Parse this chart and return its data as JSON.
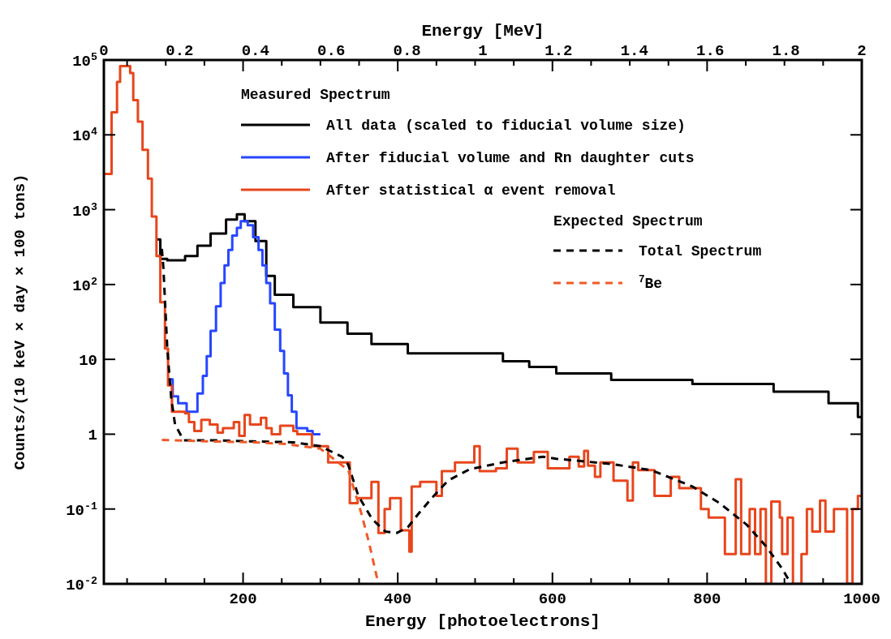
{
  "chart_data": {
    "type": "step",
    "xlabel": "Energy [photoelectrons]",
    "x2label": "Energy [MeV]",
    "ylabel": "Counts/(10 keV × day × 100 tons)",
    "legend_title": "Measured Spectrum",
    "annotations": [
      "Expected Spectrum"
    ],
    "log": "y",
    "legend": "top right",
    "grid": false,
    "xlim": [
      20,
      1000
    ],
    "xticks": [
      {
        "value": 50,
        "label": null
      },
      {
        "value": 100,
        "label": null
      },
      {
        "value": 150,
        "label": null
      },
      200,
      {
        "value": 250,
        "label": null
      },
      {
        "value": 300,
        "label": null
      },
      {
        "value": 350,
        "label": null
      },
      400,
      {
        "value": 450,
        "label": null
      },
      {
        "value": 500,
        "label": null
      },
      {
        "value": 550,
        "label": null
      },
      600,
      {
        "value": 650,
        "label": null
      },
      {
        "value": 700,
        "label": null
      },
      {
        "value": 750,
        "label": null
      },
      800,
      {
        "value": 850,
        "label": null
      },
      {
        "value": 900,
        "label": null
      },
      {
        "value": 950,
        "label": null
      },
      1000
    ],
    "x2lim": [
      0,
      2
    ],
    "x2ticks": [
      0,
      0.2,
      0.4,
      0.6,
      0.8,
      1,
      1.2,
      1.4,
      1.6,
      1.8,
      2
    ],
    "ylim": [
      0.01,
      100000
    ],
    "yticks": [
      {
        "value": 100000,
        "label": "10$^{5}$"
      },
      {
        "value": 10000,
        "label": "10$^{4}$"
      },
      {
        "value": 1000,
        "label": "10$^{3}$"
      },
      {
        "value": 100,
        "label": "10$^{2}$"
      },
      10,
      1,
      {
        "value": 0.1,
        "label": "10$^{-1}$"
      },
      {
        "value": 0.01,
        "label": "10$^{-2}$"
      }
    ],
    "series": [
      {
        "name": "All data (scaled to fiducial volume size)",
        "color": "#000000",
        "x": [
          88,
          93,
          102,
          125,
          141,
          158,
          178,
          192,
          202,
          216,
          230,
          241,
          265,
          300,
          335,
          366,
          413,
          465,
          536,
          570,
          605,
          676,
          781,
          886,
          957,
          995,
          1000
        ],
        "values": [
          400,
          220,
          210,
          240,
          330,
          480,
          740,
          870,
          700,
          380,
          130,
          73,
          50,
          31,
          22,
          16,
          12,
          12,
          9.4,
          7.9,
          6.5,
          5.3,
          4.7,
          3.7,
          2.6,
          1.7,
          1.7
        ]
      },
      {
        "name": "After fiducial volume and Rn daughter cuts",
        "color": "#2646ff",
        "x": [
          103,
          109,
          116,
          127,
          141,
          148,
          153,
          158,
          165,
          171,
          176,
          181,
          186,
          192,
          197,
          206,
          213,
          220,
          225,
          230,
          235,
          241,
          248,
          253,
          258,
          263,
          269,
          283,
          290,
          300
        ],
        "values": [
          5.4,
          3.2,
          2.6,
          2.0,
          3.5,
          6,
          11,
          24,
          51,
          105,
          180,
          290,
          450,
          570,
          700,
          620,
          430,
          290,
          180,
          105,
          56,
          25,
          13,
          6.5,
          3.3,
          2.0,
          1.2,
          1.1,
          1.0,
          1.0
        ]
      },
      {
        "name": "After statistical α event removal",
        "color": "#e8461c",
        "x": [
          20,
          30,
          37,
          41,
          54,
          58,
          64,
          70,
          77,
          82,
          88,
          93,
          99,
          103,
          108,
          125,
          130,
          137,
          146,
          157,
          167,
          174,
          188,
          195,
          202,
          209,
          223,
          230,
          237,
          248,
          265,
          270,
          289,
          310,
          338,
          348,
          366,
          375,
          383,
          390,
          404,
          415,
          418,
          429,
          450,
          457,
          474,
          499,
          506,
          527,
          541,
          555,
          576,
          594,
          622,
          634,
          641,
          646,
          655,
          662,
          679,
          697,
          704,
          711,
          732,
          753,
          764,
          792,
          802,
          823,
          837,
          844,
          855,
          862,
          869,
          876,
          883,
          894,
          897,
          904,
          911,
          922,
          929,
          936,
          946,
          953,
          964,
          981,
          988,
          995,
          1000
        ],
        "values": [
          3000,
          20000,
          51000,
          83000,
          67000,
          29000,
          15000,
          6300,
          2600,
          810,
          240,
          58,
          14,
          4.5,
          2.0,
          1.9,
          1.45,
          1.1,
          1.55,
          1.35,
          1.05,
          1.2,
          1.45,
          0.95,
          1.8,
          1.35,
          1.65,
          1.2,
          1.0,
          1.3,
          1.1,
          1.0,
          0.69,
          0.42,
          0.12,
          0.14,
          0.23,
          0.048,
          0.1,
          0.14,
          0.052,
          0.027,
          0.2,
          0.23,
          0.15,
          0.32,
          0.42,
          0.69,
          0.32,
          0.35,
          0.64,
          0.42,
          0.58,
          0.35,
          0.5,
          0.37,
          0.6,
          0.38,
          0.27,
          0.42,
          0.24,
          0.13,
          0.42,
          0.33,
          0.15,
          0.27,
          0.19,
          0.1,
          0.077,
          0.025,
          0.25,
          0.025,
          0.1,
          0.025,
          0.1,
          0.01,
          0.126,
          0.077,
          0.025,
          0.077,
          0.01,
          0.025,
          0.1,
          0.05,
          0.13,
          0.05,
          0.1,
          0.01,
          0.1,
          0.15,
          0.15
        ]
      },
      {
        "name": "Total Spectrum",
        "type": "line",
        "line_style": "dashed",
        "color": "#000000",
        "x": [
          95,
          97,
          102,
          107,
          112,
          123,
          160,
          213,
          265,
          300,
          328,
          336,
          349,
          367,
          384,
          399,
          413,
          427,
          444,
          465,
          493,
          536,
          588,
          605,
          676,
          728,
          781,
          816,
          851,
          876,
          897,
          904,
          910
        ],
        "values": [
          300,
          165,
          14,
          3.1,
          1.35,
          0.83,
          0.83,
          0.8,
          0.78,
          0.69,
          0.5,
          0.39,
          0.15,
          0.073,
          0.05,
          0.048,
          0.057,
          0.087,
          0.14,
          0.24,
          0.34,
          0.42,
          0.5,
          0.47,
          0.4,
          0.33,
          0.2,
          0.12,
          0.062,
          0.032,
          0.016,
          0.012,
          0.01
        ]
      },
      {
        "name": "$^{7}$Be",
        "type": "line",
        "line_style": "dashed",
        "color": "#f05a28",
        "x": [
          95,
          160,
          213,
          255,
          300,
          336,
          353,
          363,
          374,
          376
        ],
        "values": [
          0.84,
          0.8,
          0.78,
          0.74,
          0.64,
          0.33,
          0.087,
          0.035,
          0.011,
          0.01
        ]
      }
    ]
  }
}
